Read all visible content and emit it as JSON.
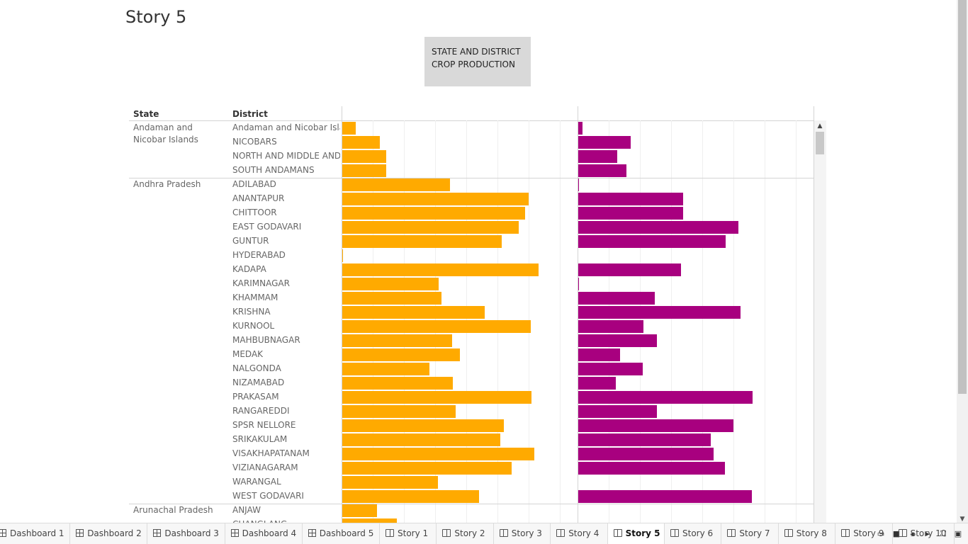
{
  "story": {
    "title": "Story 5"
  },
  "caption": {
    "line1": "STATE AND DISTRICT",
    "line2": "CROP PRODUCTION"
  },
  "colors": {
    "orange": "#ffaa00",
    "purple": "#a8007f"
  },
  "table": {
    "col_state": "State",
    "col_district": "District"
  },
  "chart_data": {
    "type": "bar",
    "orientation": "horizontal",
    "grid": true,
    "rows": [
      {
        "state": "Andaman and Nicobar Islands",
        "district": "Andaman and Nicobar Isla..",
        "orange": 19,
        "purple": 6
      },
      {
        "state": "",
        "district": "NICOBARS",
        "orange": 53,
        "purple": 74
      },
      {
        "state": "",
        "district": "NORTH AND MIDDLE AND..",
        "orange": 62,
        "purple": 55
      },
      {
        "state": "",
        "district": "SOUTH ANDAMANS",
        "orange": 62,
        "purple": 68
      },
      {
        "state": "Andhra Pradesh",
        "district": "ADILABAD",
        "orange": 152,
        "purple": 1
      },
      {
        "state": "",
        "district": "ANANTAPUR",
        "orange": 263,
        "purple": 148
      },
      {
        "state": "",
        "district": "CHITTOOR",
        "orange": 258,
        "purple": 148
      },
      {
        "state": "",
        "district": "EAST GODAVARI",
        "orange": 249,
        "purple": 226
      },
      {
        "state": "",
        "district": "GUNTUR",
        "orange": 225,
        "purple": 208
      },
      {
        "state": "",
        "district": "HYDERABAD",
        "orange": 1,
        "purple": 0
      },
      {
        "state": "",
        "district": "KADAPA",
        "orange": 277,
        "purple": 145
      },
      {
        "state": "",
        "district": "KARIMNAGAR",
        "orange": 136,
        "purple": 1
      },
      {
        "state": "",
        "district": "KHAMMAM",
        "orange": 140,
        "purple": 108
      },
      {
        "state": "",
        "district": "KRISHNA",
        "orange": 201,
        "purple": 229
      },
      {
        "state": "",
        "district": "KURNOOL",
        "orange": 266,
        "purple": 92
      },
      {
        "state": "",
        "district": "MAHBUBNAGAR",
        "orange": 155,
        "purple": 111
      },
      {
        "state": "",
        "district": "MEDAK",
        "orange": 166,
        "purple": 59
      },
      {
        "state": "",
        "district": "NALGONDA",
        "orange": 123,
        "purple": 91
      },
      {
        "state": "",
        "district": "NIZAMABAD",
        "orange": 156,
        "purple": 53
      },
      {
        "state": "",
        "district": "PRAKASAM",
        "orange": 267,
        "purple": 246
      },
      {
        "state": "",
        "district": "RANGAREDDI",
        "orange": 160,
        "purple": 111
      },
      {
        "state": "",
        "district": "SPSR NELLORE",
        "orange": 228,
        "purple": 219
      },
      {
        "state": "",
        "district": "SRIKAKULAM",
        "orange": 223,
        "purple": 187
      },
      {
        "state": "",
        "district": "VISAKHAPATANAM",
        "orange": 271,
        "purple": 191
      },
      {
        "state": "",
        "district": "VIZIANAGARAM",
        "orange": 239,
        "purple": 207
      },
      {
        "state": "",
        "district": "WARANGAL",
        "orange": 135,
        "purple": 0
      },
      {
        "state": "",
        "district": "WEST GODAVARI",
        "orange": 193,
        "purple": 245
      },
      {
        "state": "Arunachal Pradesh",
        "district": "ANJAW",
        "orange": 49,
        "purple": 0
      },
      {
        "state": "",
        "district": "CHANGLANG",
        "orange": 77,
        "purple": 0
      }
    ]
  },
  "tabs": [
    {
      "label": "Dashboard 1",
      "kind": "grid"
    },
    {
      "label": "Dashboard 2",
      "kind": "grid"
    },
    {
      "label": "Dashboard 3",
      "kind": "grid"
    },
    {
      "label": "Dashboard 4",
      "kind": "grid"
    },
    {
      "label": "Dashboard 5",
      "kind": "grid"
    },
    {
      "label": "Story 1",
      "kind": "book"
    },
    {
      "label": "Story 2",
      "kind": "book"
    },
    {
      "label": "Story 3",
      "kind": "book"
    },
    {
      "label": "Story 4",
      "kind": "book"
    },
    {
      "label": "Story 5",
      "kind": "book",
      "active": true
    },
    {
      "label": "Story 6",
      "kind": "book"
    },
    {
      "label": "Story 7",
      "kind": "book"
    },
    {
      "label": "Story 8",
      "kind": "book"
    },
    {
      "label": "Story 9",
      "kind": "book"
    },
    {
      "label": "Story 10",
      "kind": "book"
    }
  ],
  "controls": {
    "sheet_sorter_icon": "sheet-sorter-icon",
    "filmstrip_icon": "filmstrip-icon",
    "prev_icon": "prev-arrow-icon",
    "next_icon": "next-arrow-icon",
    "fullscreen_icon": "fullscreen-icon",
    "present_icon": "present-icon"
  }
}
